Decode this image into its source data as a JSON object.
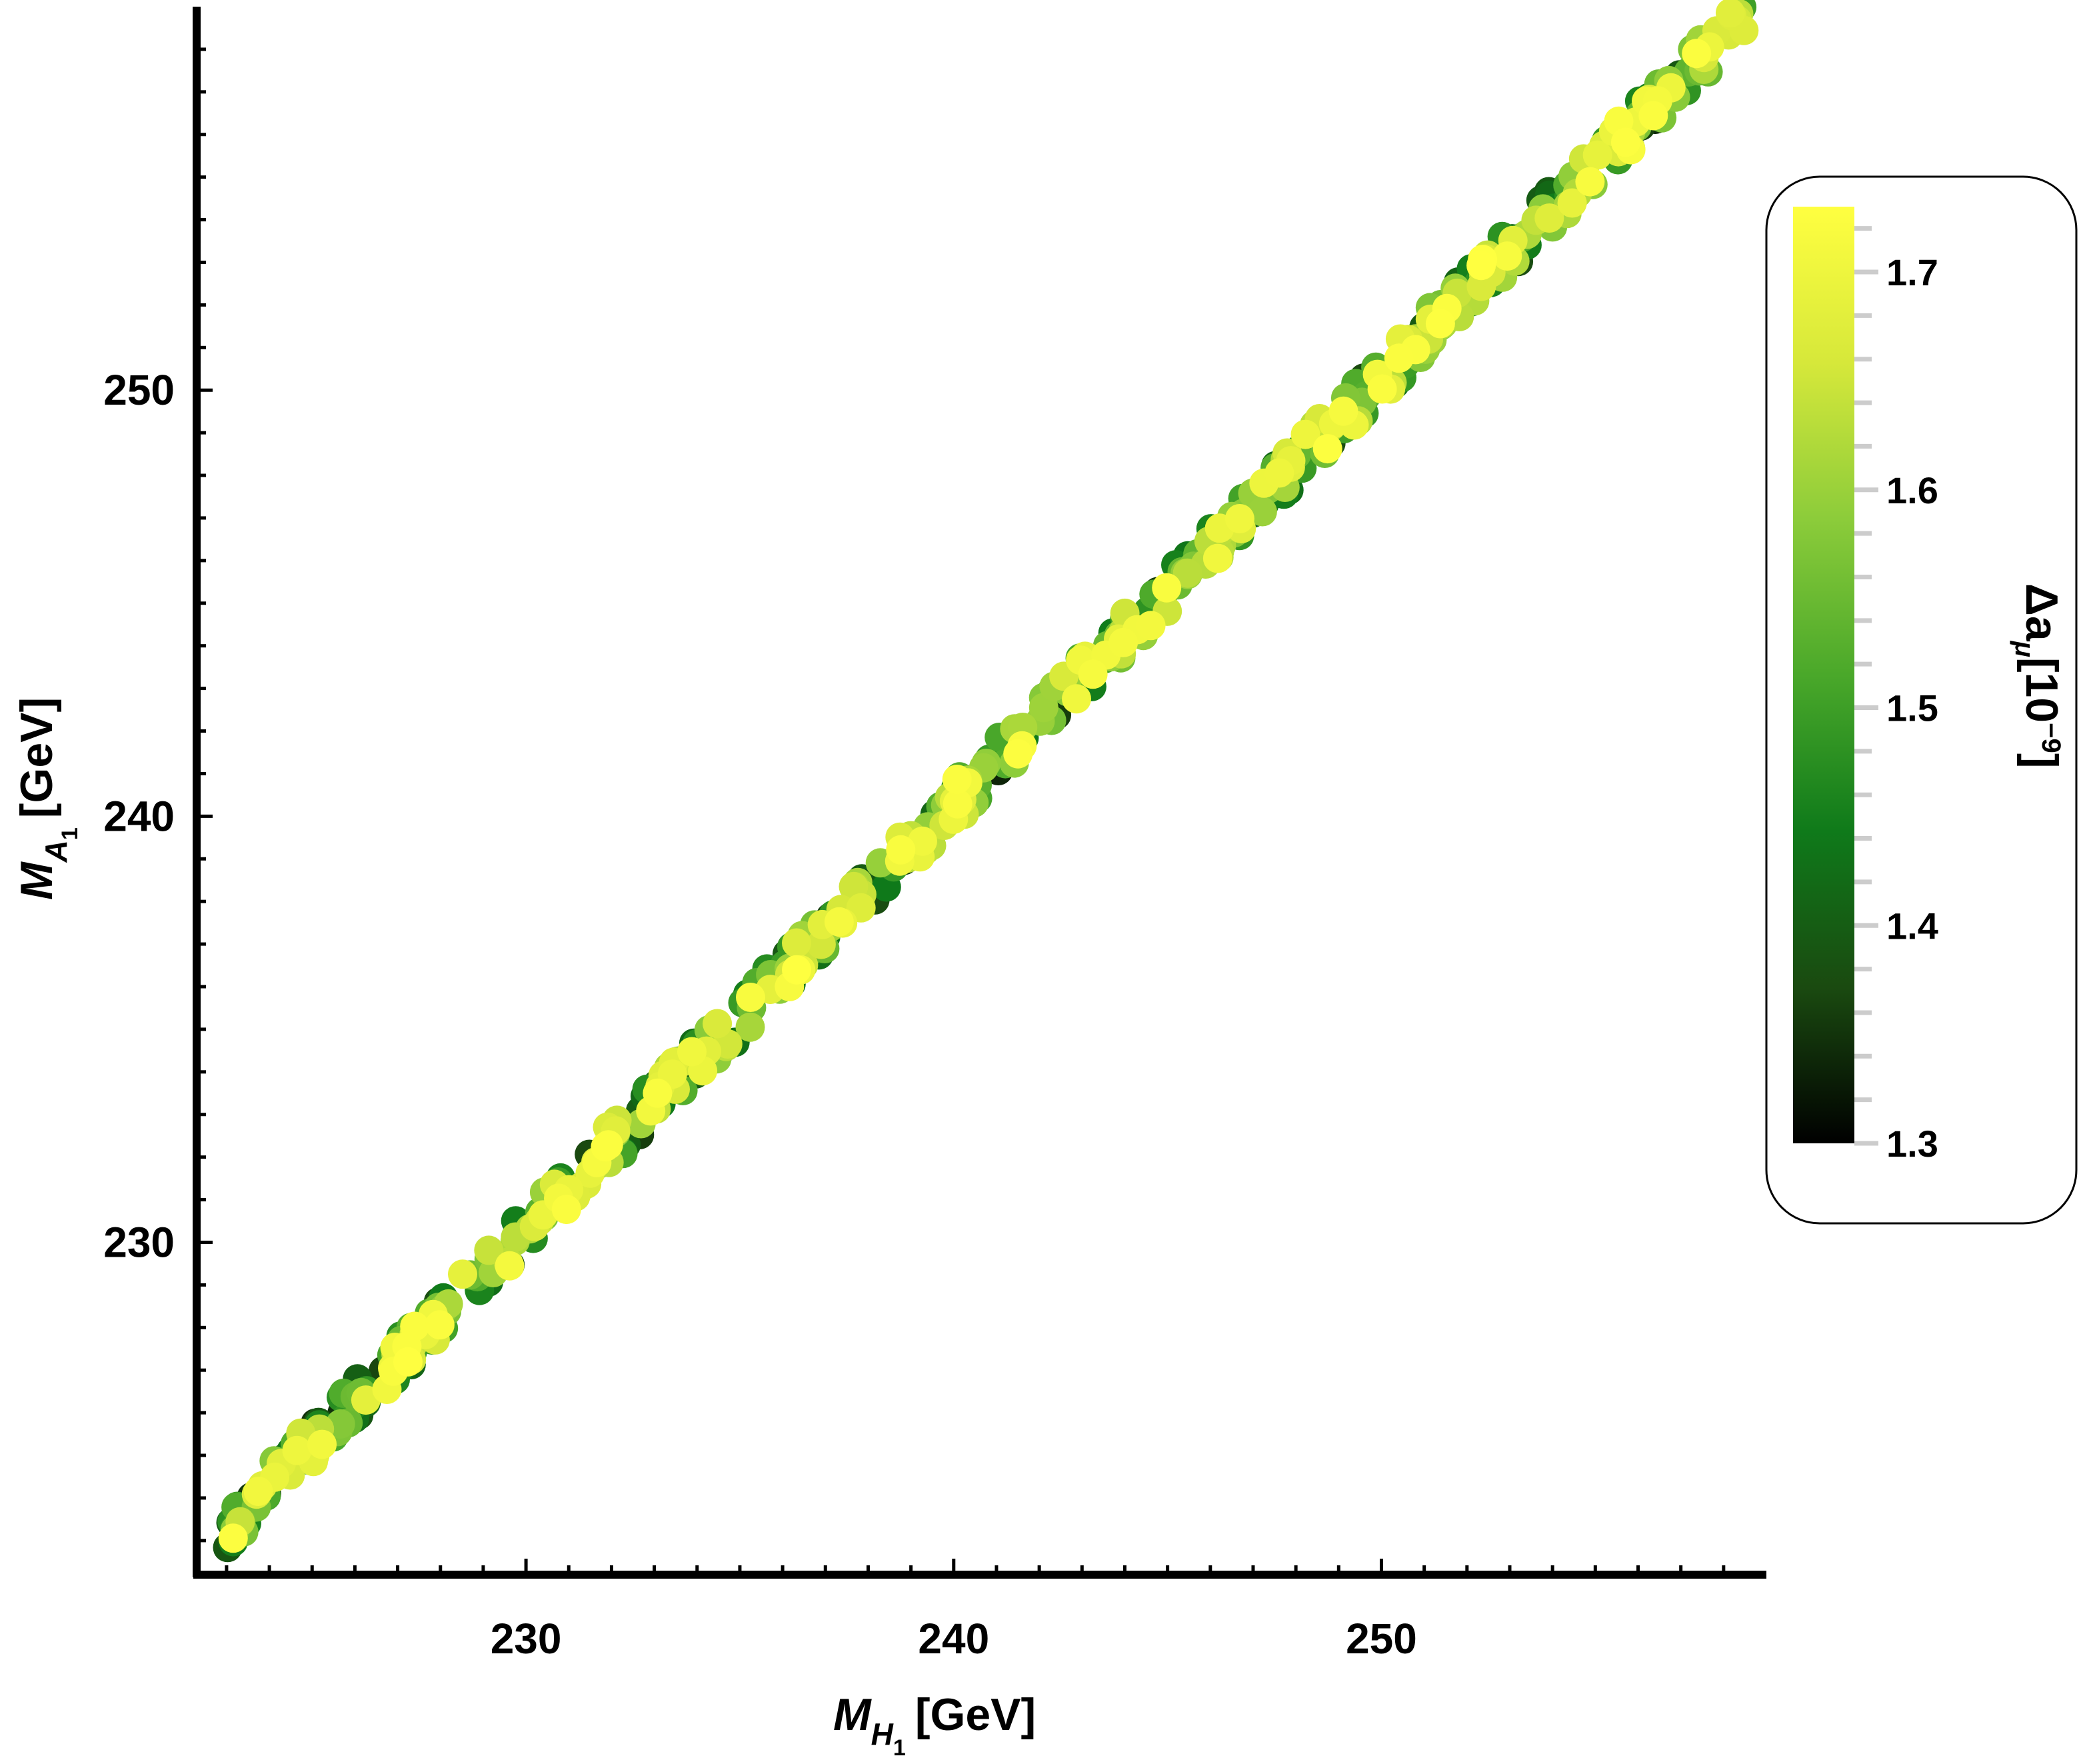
{
  "chart_data": {
    "type": "scatter",
    "title": "",
    "xlabel": {
      "main": "M",
      "sub": "H",
      "subsub": "1",
      "unit": "[GeV]"
    },
    "ylabel": {
      "main": "M",
      "sub": "A",
      "subsub": "1",
      "unit": "[GeV]"
    },
    "xlim": [
      222.3,
      259.0
    ],
    "ylim": [
      222.2,
      259.0
    ],
    "x_ticks": [
      230,
      240,
      250
    ],
    "y_ticks": [
      230,
      240,
      250
    ],
    "grid": false,
    "legend": "right (colorbar)",
    "band": {
      "x_range": [
        223,
        258.5
      ],
      "slope": 1.0,
      "intercept": 0.3,
      "half_width": 0.5,
      "approx_points": 600
    },
    "colorbar": {
      "title": {
        "delta": "Δa",
        "sub": "μ",
        "unit_base": "[10",
        "unit_exp": "−9",
        "unit_close": "]"
      },
      "min": 1.3,
      "max": 1.73,
      "ticks": [
        "1.3",
        "1.4",
        "1.5",
        "1.6",
        "1.7"
      ],
      "tick_values": [
        1.3,
        1.4,
        1.5,
        1.6,
        1.7
      ],
      "gradient": [
        "#000000",
        "#1a4a10",
        "#0f7a1a",
        "#4aa82a",
        "#8ccc3a",
        "#d6e83a",
        "#ffff40"
      ]
    },
    "colors": {
      "axis": "#000000",
      "tick_minor": "#cccccc"
    }
  }
}
